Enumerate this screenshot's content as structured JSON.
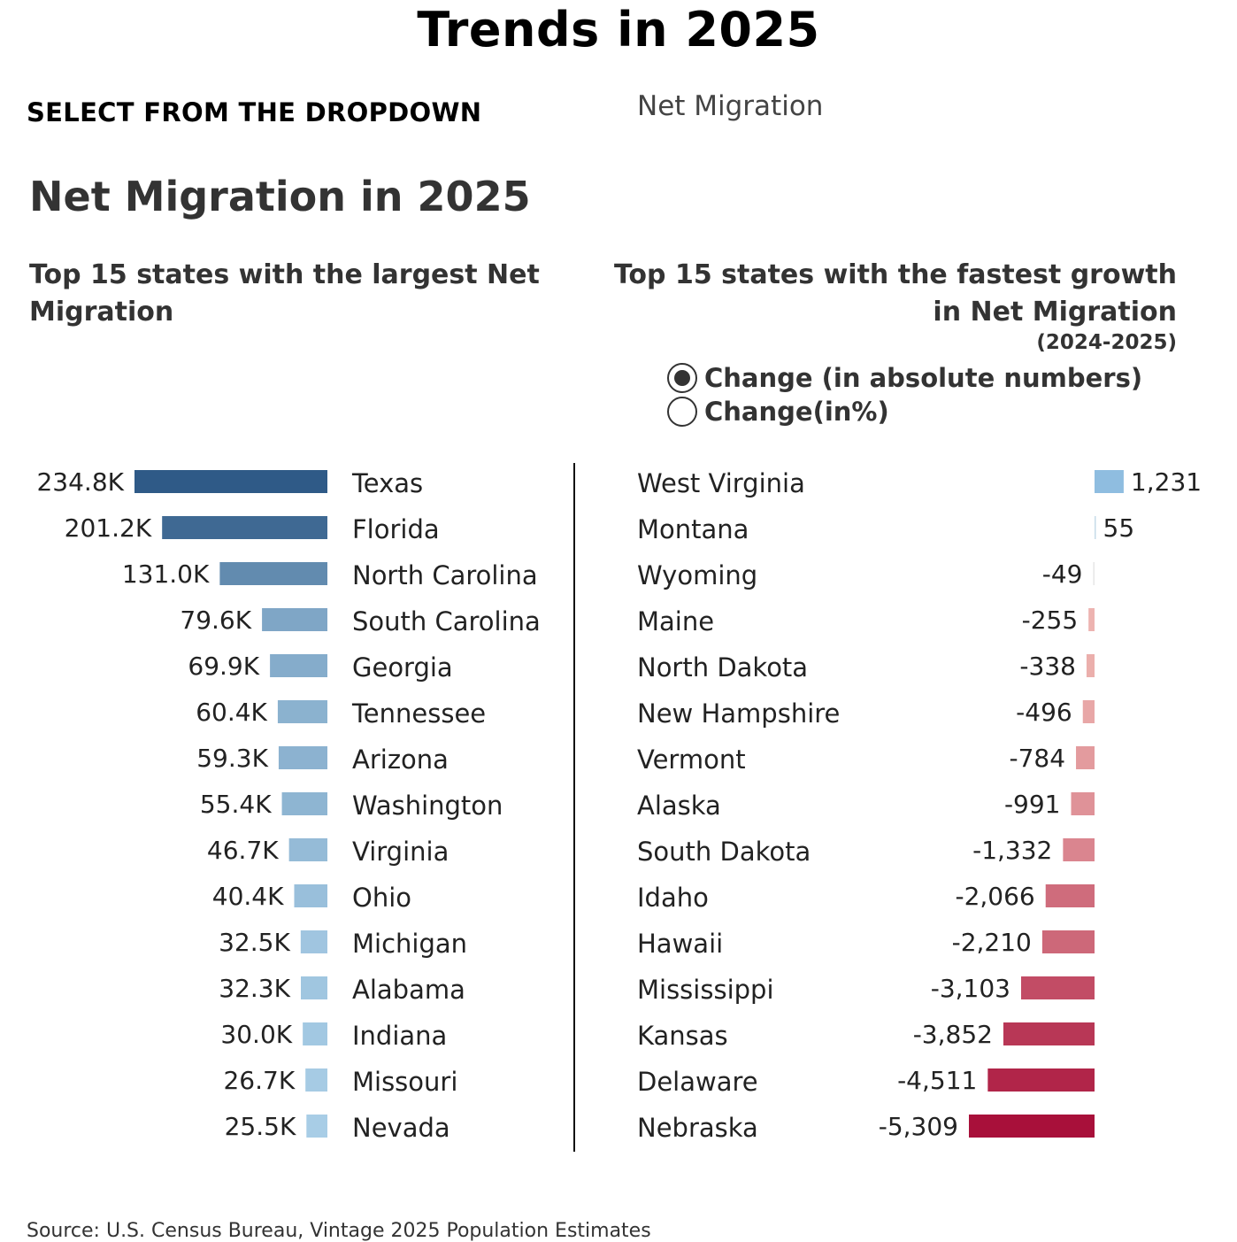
{
  "page": {
    "title": "Trends in 2025",
    "dropdown_label": "SELECT FROM THE DROPDOWN",
    "dropdown_value": "Net Migration",
    "section_title": "Net Migration in 2025",
    "source": "Source: U.S. Census Bureau, Vintage 2025 Population Estimates"
  },
  "radio": {
    "options": [
      "Change (in absolute numbers)",
      "Change(in%)"
    ],
    "selected": 0
  },
  "chart_data": [
    {
      "type": "bar",
      "orientation": "horizontal",
      "title": "Top 15 states with the largest Net Migration",
      "categories": [
        "Texas",
        "Florida",
        "North Carolina",
        "South Carolina",
        "Georgia",
        "Tennessee",
        "Arizona",
        "Washington",
        "Virginia",
        "Ohio",
        "Michigan",
        "Alabama",
        "Indiana",
        "Missouri",
        "Nevada"
      ],
      "values": [
        234800,
        201200,
        131000,
        79600,
        69900,
        60400,
        59300,
        55400,
        46700,
        40400,
        32500,
        32300,
        30000,
        26700,
        25500
      ],
      "labels": [
        "234.8K",
        "201.2K",
        "131.0K",
        "79.6K",
        "69.9K",
        "60.4K",
        "59.3K",
        "55.4K",
        "46.7K",
        "40.4K",
        "32.5K",
        "32.3K",
        "30.0K",
        "26.7K",
        "25.5K"
      ],
      "color_scale": [
        "#a8cde6",
        "#2f5a87"
      ]
    },
    {
      "type": "bar",
      "orientation": "horizontal",
      "title": "Top 15 states with the fastest growth in Net Migration",
      "subtitle": "(2024-2025)",
      "categories": [
        "West Virginia",
        "Montana",
        "Wyoming",
        "Maine",
        "North Dakota",
        "New Hampshire",
        "Vermont",
        "Alaska",
        "South Dakota",
        "Idaho",
        "Hawaii",
        "Mississippi",
        "Kansas",
        "Delaware",
        "Nebraska"
      ],
      "values": [
        1231,
        55,
        -49,
        -255,
        -338,
        -496,
        -784,
        -991,
        -1332,
        -2066,
        -2210,
        -3103,
        -3852,
        -4511,
        -5309
      ],
      "labels": [
        "1,231",
        "55",
        "-49",
        "-255",
        "-338",
        "-496",
        "-784",
        "-991",
        "-1,332",
        "-2,066",
        "-2,210",
        "-3,103",
        "-3,852",
        "-4,511",
        "-5,309"
      ],
      "positive_color": "#8fbde0",
      "negative_color_scale": [
        "#f5c6bd",
        "#a8103a"
      ]
    }
  ]
}
